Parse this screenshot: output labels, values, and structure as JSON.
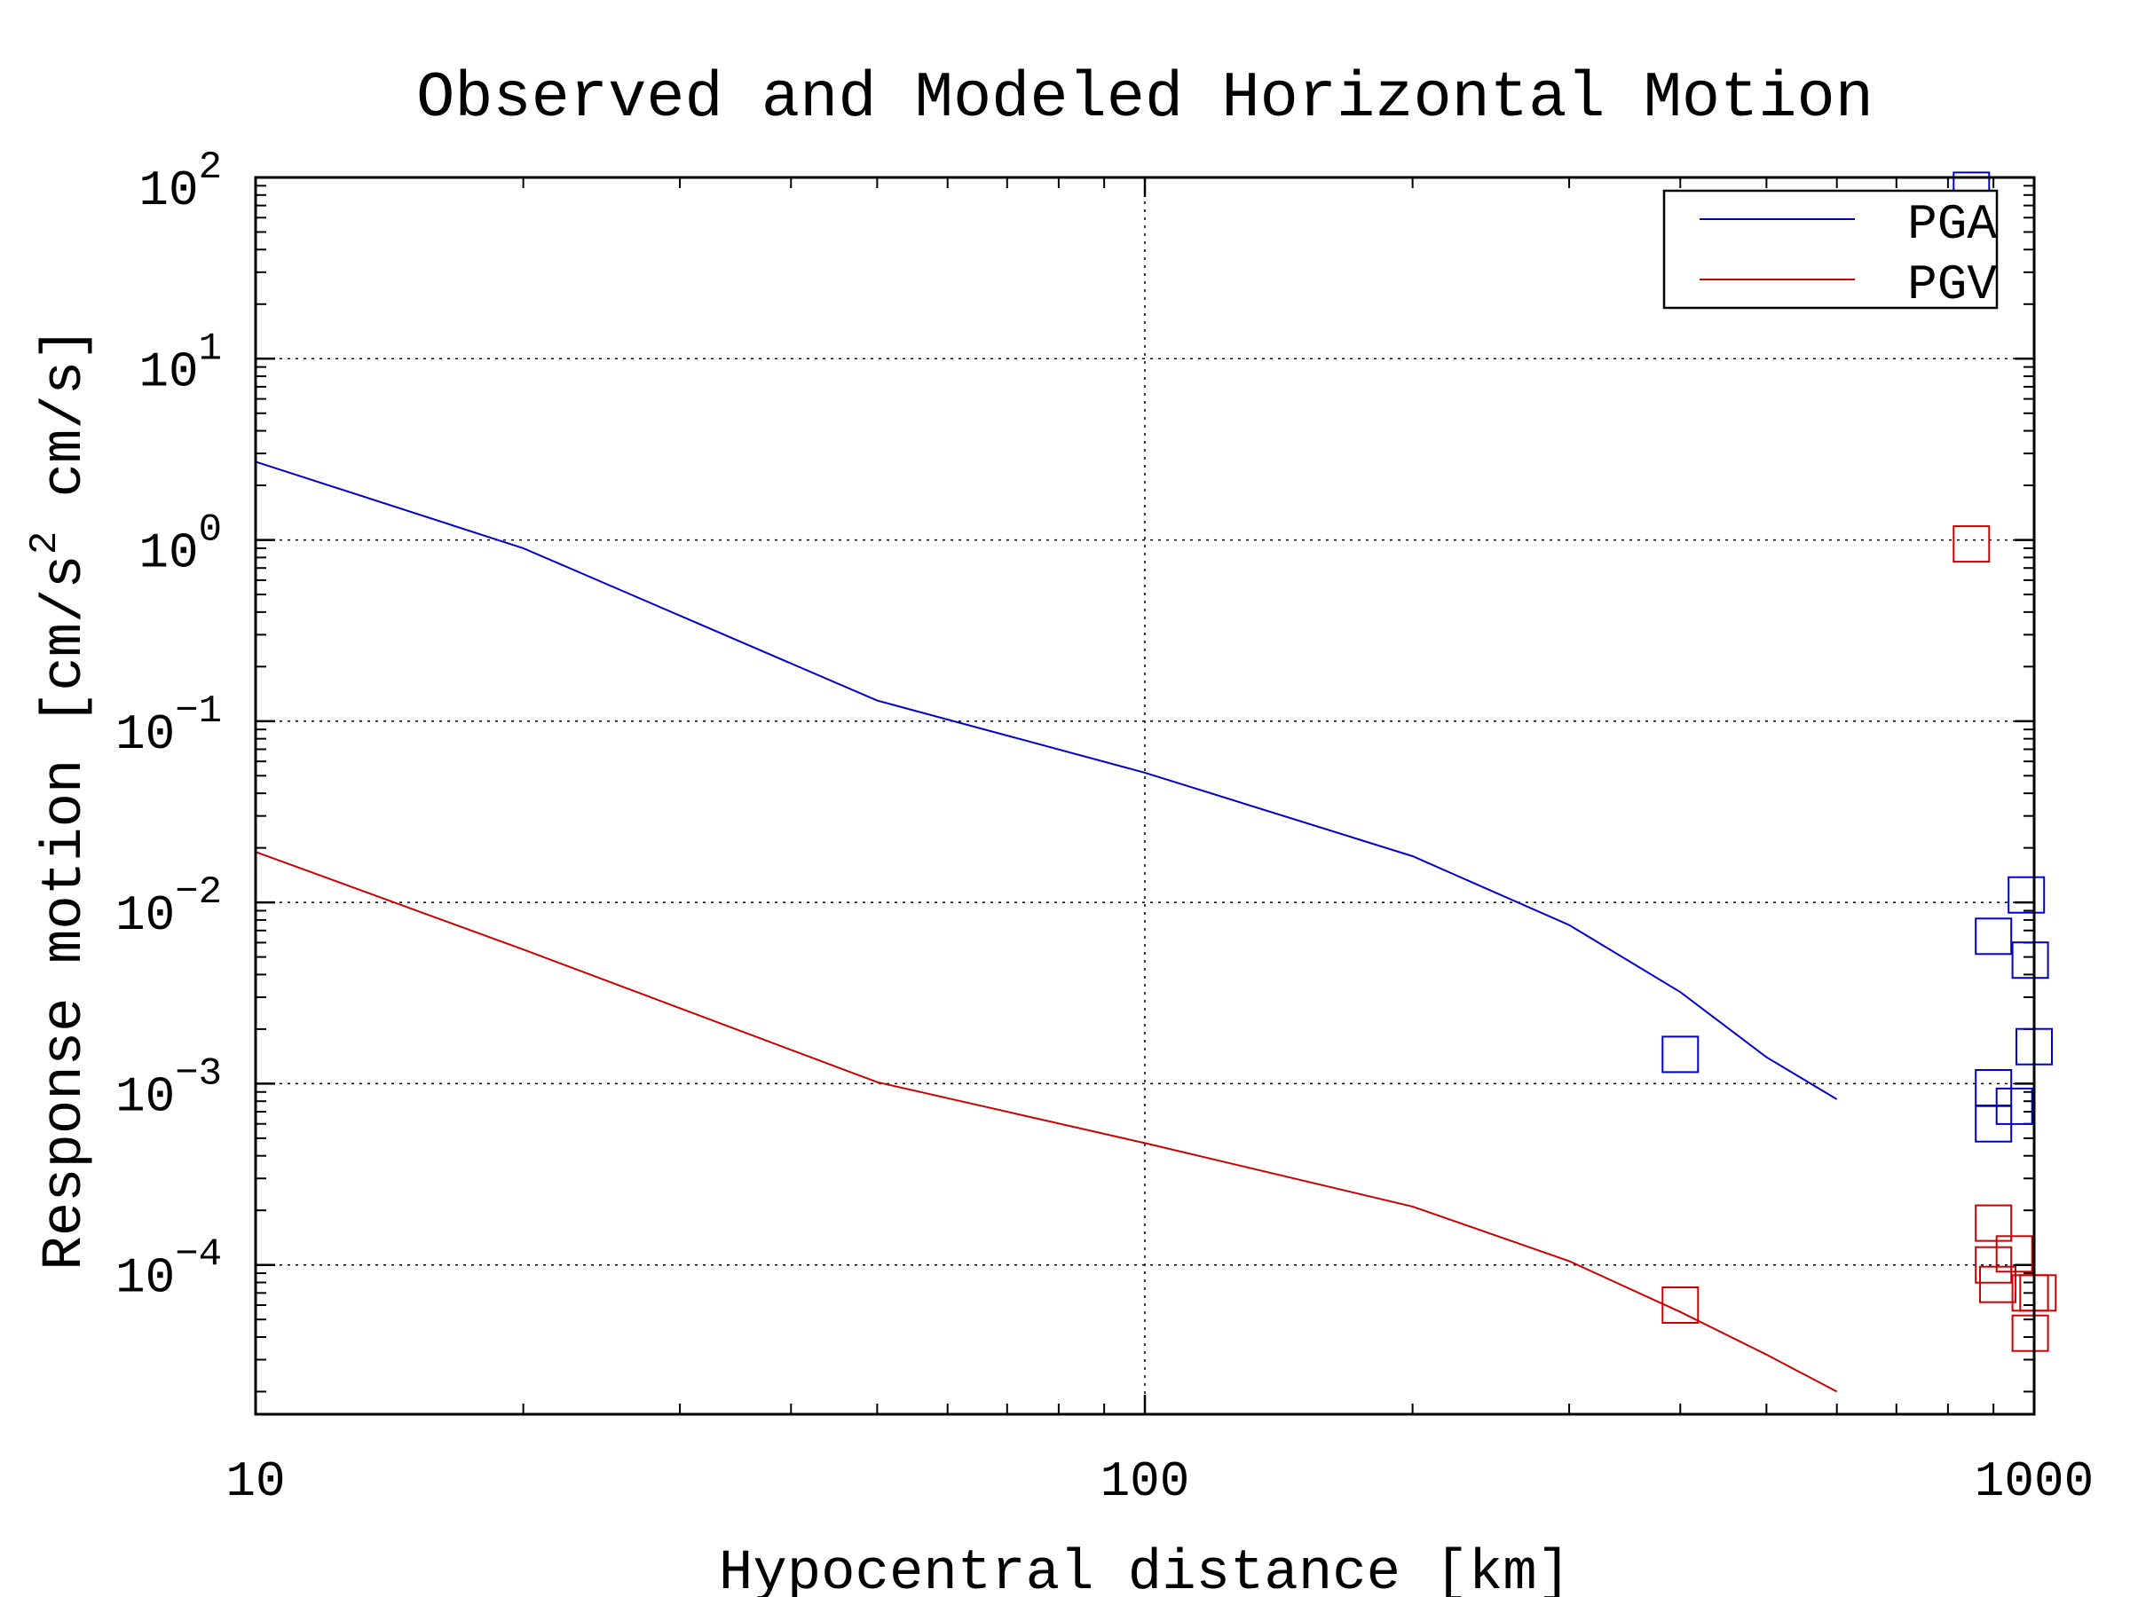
{
  "chart_data": {
    "type": "line",
    "title": "Observed and Modeled Horizontal Motion",
    "xlabel": "Hypocentral distance [km]",
    "ylabel": {
      "main": "Response motion [cm/s",
      "sup": "2",
      "tail": " cm/s]"
    },
    "xscale": "log",
    "yscale": "log",
    "xlim": [
      10,
      1000
    ],
    "ylim": [
      1.5e-05,
      100
    ],
    "grid": true,
    "legend_position": "top-right",
    "x_ticks": [
      {
        "value": 10,
        "label": "10"
      },
      {
        "value": 100,
        "label": "100"
      },
      {
        "value": 1000,
        "label": "1000"
      }
    ],
    "y_ticks": [
      {
        "value": 100,
        "base": "10",
        "exp": "2"
      },
      {
        "value": 10,
        "base": "10",
        "exp": "1"
      },
      {
        "value": 1,
        "base": "10",
        "exp": "0"
      },
      {
        "value": 0.1,
        "base": "10",
        "exp": "−1"
      },
      {
        "value": 0.01,
        "base": "10",
        "exp": "−2"
      },
      {
        "value": 0.001,
        "base": "10",
        "exp": "−3"
      },
      {
        "value": 0.0001,
        "base": "10",
        "exp": "−4"
      }
    ],
    "series": [
      {
        "name": "PGA",
        "color": "#0000cc",
        "line": [
          [
            10,
            2.7
          ],
          [
            20,
            0.9
          ],
          [
            50,
            0.13
          ],
          [
            100,
            0.052
          ],
          [
            200,
            0.018
          ],
          [
            300,
            0.0075
          ],
          [
            400,
            0.0032
          ],
          [
            500,
            0.0014
          ],
          [
            600,
            0.00082
          ]
        ],
        "observed": [
          [
            400,
            0.00145
          ],
          [
            850,
            85
          ],
          [
            900,
            0.0065
          ],
          [
            900,
            0.00095
          ],
          [
            900,
            0.0006
          ],
          [
            950,
            0.00075
          ],
          [
            980,
            0.011
          ],
          [
            990,
            0.0048
          ],
          [
            1000,
            0.0016
          ]
        ]
      },
      {
        "name": "PGV",
        "color": "#cc0000",
        "line": [
          [
            10,
            0.019
          ],
          [
            20,
            0.0055
          ],
          [
            50,
            0.00102
          ],
          [
            100,
            0.00047
          ],
          [
            200,
            0.00021
          ],
          [
            300,
            0.000105
          ],
          [
            400,
            5.5e-05
          ],
          [
            500,
            3.2e-05
          ],
          [
            600,
            2e-05
          ]
        ],
        "observed": [
          [
            400,
            6e-05
          ],
          [
            850,
            0.95
          ],
          [
            900,
            0.00017
          ],
          [
            900,
            0.0001
          ],
          [
            910,
            7.8e-05
          ],
          [
            950,
            0.000115
          ],
          [
            990,
            7e-05
          ],
          [
            990,
            4.2e-05
          ],
          [
            1010,
            7e-05
          ]
        ]
      }
    ]
  }
}
